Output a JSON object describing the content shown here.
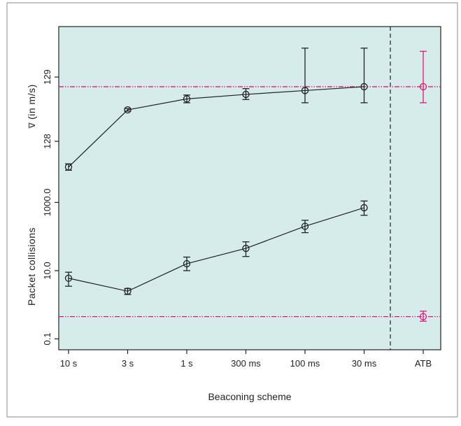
{
  "chart_data": {
    "type": "line",
    "xlabel": "Beaconing scheme",
    "categories": [
      "10 s",
      "3 s",
      "1 s",
      "300 ms",
      "100 ms",
      "30 ms",
      "ATB"
    ],
    "colors": {
      "panel_bg": "#d5ecea",
      "series": "#222222",
      "reference": "#e0197a",
      "frame": "#9a9a9a"
    },
    "panels": [
      {
        "name": "speed",
        "ylabel": "v̅ (in m/s)",
        "ylim": [
          127.5,
          129.6
        ],
        "yticks": [
          128,
          129
        ],
        "ytick_labels": [
          "128",
          "129"
        ],
        "series": {
          "x": [
            "10 s",
            "3 s",
            "1 s",
            "300 ms",
            "100 ms",
            "30 ms"
          ],
          "values": [
            127.6,
            128.49,
            128.66,
            128.73,
            128.79,
            128.85
          ],
          "err_low": [
            127.55,
            128.47,
            128.6,
            128.65,
            128.6,
            128.6
          ],
          "err_high": [
            127.65,
            128.51,
            128.72,
            128.82,
            129.45,
            129.45
          ]
        },
        "reference": {
          "name": "ATB",
          "value": 128.85,
          "err_low": 128.6,
          "err_high": 129.4
        }
      },
      {
        "name": "collisions",
        "ylabel": "Packet collisions",
        "scale": "log",
        "ylim": [
          0.07,
          2500
        ],
        "yticks": [
          0.1,
          10,
          1000
        ],
        "ytick_labels": [
          "0.1",
          "10.0",
          "1000.0"
        ],
        "series": {
          "x": [
            "10 s",
            "3 s",
            "1 s",
            "300 ms",
            "100 ms",
            "30 ms"
          ],
          "values": [
            6,
            2.5,
            16,
            45,
            200,
            700
          ],
          "err_low": [
            3.5,
            2,
            10,
            26,
            130,
            420
          ],
          "err_high": [
            9,
            3,
            25,
            70,
            300,
            1100
          ]
        },
        "reference": {
          "name": "ATB",
          "value": 0.45,
          "err_low": 0.33,
          "err_high": 0.65
        }
      }
    ]
  }
}
